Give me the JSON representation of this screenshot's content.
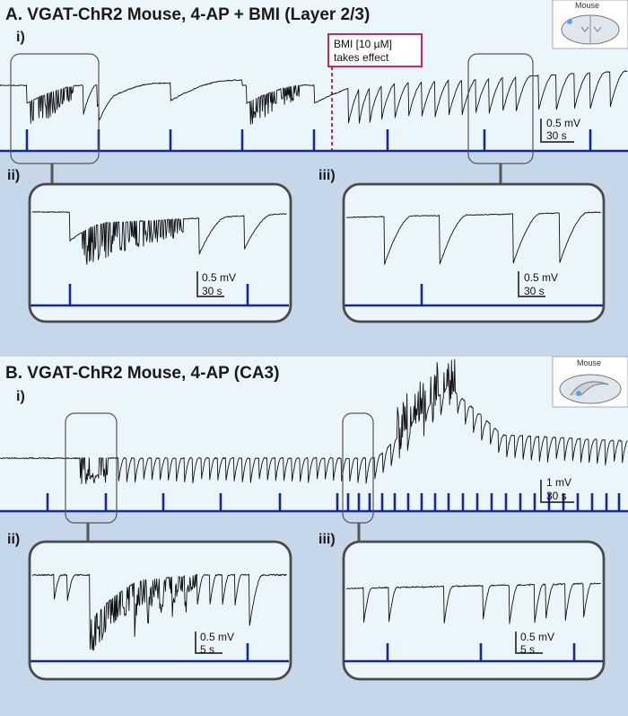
{
  "panelA": {
    "title": "A. VGAT-ChR2 Mouse, 4-AP + BMI (Layer 2/3)",
    "sub_i": "i)",
    "sub_ii": "ii)",
    "sub_iii": "iii)",
    "bmi_line1": "BMI [10 µM]",
    "bmi_line2": "takes effect",
    "icon_label": "Mouse",
    "scale_i": {
      "v": "0.5 mV",
      "t": "30 s"
    },
    "scale_ii": {
      "v": "0.5 mV",
      "t": "30 s"
    },
    "scale_iii": {
      "v": "0.5 mV",
      "t": "30 s"
    }
  },
  "panelB": {
    "title": "B. VGAT-ChR2 Mouse, 4-AP (CA3)",
    "sub_i": "i)",
    "sub_ii": "ii)",
    "sub_iii": "iii)",
    "icon_label": "Mouse",
    "scale_i": {
      "v": "1 mV",
      "t": "30 s"
    },
    "scale_ii": {
      "v": "0.5 mV",
      "t": "5 s"
    },
    "scale_iii": {
      "v": "0.5 mV",
      "t": "5 s"
    }
  },
  "colors": {
    "bg_light": "#ebf6fc",
    "bg_dark": "#c6d7e9",
    "stim": "#14279b",
    "trace": "#111111",
    "highlight": "#d4245a"
  }
}
